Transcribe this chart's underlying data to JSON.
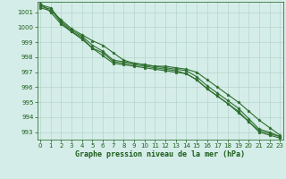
{
  "x": [
    0,
    1,
    2,
    3,
    4,
    5,
    6,
    7,
    8,
    9,
    10,
    11,
    12,
    13,
    14,
    15,
    16,
    17,
    18,
    19,
    20,
    21,
    22,
    23
  ],
  "series": [
    [
      1001.3,
      1001.1,
      1000.5,
      999.9,
      999.5,
      999.1,
      998.8,
      998.3,
      997.8,
      997.6,
      997.5,
      997.4,
      997.4,
      997.3,
      997.2,
      997.0,
      996.5,
      996.0,
      995.5,
      995.0,
      994.4,
      993.8,
      993.3,
      992.8
    ],
    [
      1001.4,
      1001.2,
      1000.3,
      999.7,
      999.3,
      998.6,
      998.3,
      997.7,
      997.6,
      997.5,
      997.4,
      997.3,
      997.2,
      997.1,
      996.9,
      996.5,
      995.9,
      995.4,
      994.9,
      994.3,
      993.7,
      993.1,
      992.9,
      992.7
    ],
    [
      1001.5,
      1001.3,
      1000.4,
      999.8,
      999.4,
      998.8,
      998.4,
      997.8,
      997.7,
      997.6,
      997.5,
      997.4,
      997.3,
      997.2,
      997.1,
      996.7,
      996.1,
      995.6,
      995.1,
      994.6,
      993.9,
      993.2,
      993.0,
      992.7
    ],
    [
      1001.6,
      1001.0,
      1000.2,
      999.7,
      999.2,
      998.6,
      998.1,
      997.6,
      997.5,
      997.4,
      997.3,
      997.2,
      997.1,
      997.0,
      996.9,
      996.5,
      995.9,
      995.4,
      994.9,
      994.4,
      993.7,
      993.0,
      992.8,
      992.6
    ]
  ],
  "line_color": "#2d6e2d",
  "marker": "*",
  "markersize": 2.5,
  "ylim": [
    992.5,
    1001.7
  ],
  "yticks": [
    993,
    994,
    995,
    996,
    997,
    998,
    999,
    1000,
    1001
  ],
  "xticks": [
    0,
    1,
    2,
    3,
    4,
    5,
    6,
    7,
    8,
    9,
    10,
    11,
    12,
    13,
    14,
    15,
    16,
    17,
    18,
    19,
    20,
    21,
    22,
    23
  ],
  "xlabel": "Graphe pression niveau de la mer (hPa)",
  "bg_color": "#d5ede8",
  "grid_color": "#b5d5cc",
  "text_color": "#1a5c1a",
  "tick_fontsize": 5,
  "label_fontsize": 6
}
